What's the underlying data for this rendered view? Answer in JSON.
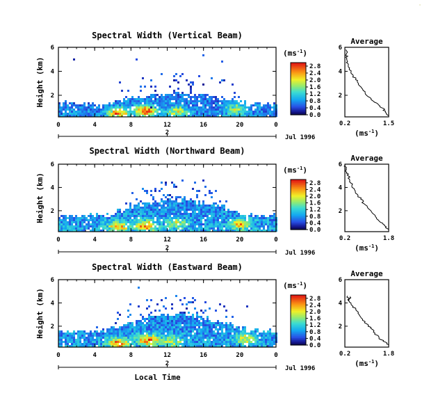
{
  "figure": {
    "x_label": "Local Time",
    "date_label": "Jul 1996",
    "day_label": "2",
    "colorbar_unit_base": "(ms",
    "colorbar_unit_sup": "-1",
    "colorbar_unit_close": ")"
  },
  "chart_data": [
    {
      "type": "heatmap",
      "title": "Spectral Width (Vertical Beam)",
      "xlabel": "",
      "ylabel": "Height (km)",
      "x_ticks": [
        "0",
        "4",
        "8",
        "12",
        "16",
        "20",
        "0"
      ],
      "xlim": [
        0,
        24
      ],
      "y_ticks": [
        "6",
        "4",
        "2"
      ],
      "ylim": [
        0.2,
        6
      ],
      "colorbar": {
        "ticks": [
          "2.8",
          "2.4",
          "2.0",
          "1.6",
          "1.2",
          "0.8",
          "0.4",
          "0.0"
        ],
        "range": [
          0,
          3.0
        ]
      },
      "top_height": 2.2,
      "mean_width": 0.7,
      "hot_spots": [
        {
          "x": 6.5,
          "y": 0.6,
          "v": 2.6
        },
        {
          "x": 9.5,
          "y": 0.8,
          "v": 2.8
        },
        {
          "x": 13,
          "y": 0.7,
          "v": 1.9
        },
        {
          "x": 19.5,
          "y": 0.9,
          "v": 1.8
        }
      ],
      "average_profile": {
        "title": "Average",
        "xlabel_base": "(ms",
        "xlabel_sup": "-1",
        "xlabel_close": ")",
        "x_ticks": [
          "0.2",
          "1.5"
        ],
        "xlim": [
          0.2,
          1.5
        ],
        "y_ticks": [
          "6",
          "4",
          "2"
        ],
        "ylim": [
          0.2,
          6
        ],
        "width": [
          1.5,
          1.4,
          1.35,
          1.2,
          1.05,
          0.95,
          0.8,
          0.7,
          0.6,
          0.52,
          0.45,
          0.38,
          0.33,
          0.3,
          0.28,
          0.26,
          0.24,
          0.23
        ],
        "height": [
          0.3,
          0.6,
          0.9,
          1.2,
          1.5,
          1.8,
          2.2,
          2.6,
          3.0,
          3.3,
          3.6,
          3.9,
          4.2,
          4.5,
          4.8,
          5.1,
          5.4,
          5.8
        ]
      }
    },
    {
      "type": "heatmap",
      "title": "Spectral Width (Northward Beam)",
      "xlabel": "",
      "ylabel": "Height (km)",
      "x_ticks": [
        "0",
        "4",
        "8",
        "12",
        "16",
        "20",
        "0"
      ],
      "xlim": [
        0,
        24
      ],
      "y_ticks": [
        "6",
        "4",
        "2"
      ],
      "ylim": [
        0.2,
        6
      ],
      "colorbar": {
        "ticks": [
          "2.8",
          "2.4",
          "2.0",
          "1.6",
          "1.2",
          "0.8",
          "0.4",
          "0.0"
        ],
        "range": [
          0,
          3.0
        ]
      },
      "top_height": 3.0,
      "mean_width": 0.8,
      "hot_spots": [
        {
          "x": 6.5,
          "y": 0.7,
          "v": 2.4
        },
        {
          "x": 9.5,
          "y": 0.8,
          "v": 2.6
        },
        {
          "x": 13,
          "y": 1.0,
          "v": 1.8
        },
        {
          "x": 20,
          "y": 0.9,
          "v": 2.2
        }
      ],
      "average_profile": {
        "title": "Average",
        "xlabel_base": "(ms",
        "xlabel_sup": "-1",
        "xlabel_close": ")",
        "x_ticks": [
          "0.2",
          "1.8"
        ],
        "xlim": [
          0.2,
          1.8
        ],
        "y_ticks": [
          "6",
          "4",
          "2"
        ],
        "ylim": [
          0.2,
          6
        ],
        "width": [
          1.8,
          1.65,
          1.5,
          1.35,
          1.2,
          1.05,
          0.9,
          0.78,
          0.66,
          0.55,
          0.46,
          0.38,
          0.32,
          0.27,
          0.24,
          0.22
        ],
        "height": [
          0.4,
          0.7,
          1.0,
          1.4,
          1.8,
          2.2,
          2.6,
          3.0,
          3.4,
          3.8,
          4.2,
          4.6,
          5.0,
          5.3,
          5.6,
          5.9
        ]
      }
    },
    {
      "type": "heatmap",
      "title": "Spectral Width (Eastward Beam)",
      "xlabel": "Local Time",
      "ylabel": "Height (km)",
      "x_ticks": [
        "0",
        "4",
        "8",
        "12",
        "16",
        "20",
        "0"
      ],
      "xlim": [
        0,
        24
      ],
      "y_ticks": [
        "6",
        "4",
        "2"
      ],
      "ylim": [
        0.2,
        6
      ],
      "colorbar": {
        "ticks": [
          "2.8",
          "2.4",
          "2.0",
          "1.6",
          "1.2",
          "0.8",
          "0.4",
          "0.0"
        ],
        "range": [
          0,
          3.0
        ]
      },
      "top_height": 3.1,
      "mean_width": 0.8,
      "hot_spots": [
        {
          "x": 6.5,
          "y": 0.6,
          "v": 2.6
        },
        {
          "x": 9.8,
          "y": 0.9,
          "v": 2.8
        },
        {
          "x": 12.5,
          "y": 0.8,
          "v": 1.9
        },
        {
          "x": 20.5,
          "y": 1.0,
          "v": 2.0
        }
      ],
      "average_profile": {
        "title": "Average",
        "xlabel_base": "(ms",
        "xlabel_sup": "-1",
        "xlabel_close": ")",
        "x_ticks": [
          "0.2",
          "1.8"
        ],
        "xlim": [
          0.2,
          1.8
        ],
        "y_ticks": [
          "6",
          "4",
          "2"
        ],
        "ylim": [
          0.2,
          6
        ],
        "width": [
          1.8,
          1.6,
          1.45,
          1.3,
          1.15,
          1.0,
          0.85,
          0.72,
          0.6,
          0.5,
          0.42,
          0.36,
          0.4,
          0.33,
          0.3
        ],
        "height": [
          0.4,
          0.7,
          1.0,
          1.4,
          1.8,
          2.2,
          2.6,
          3.0,
          3.4,
          3.7,
          4.0,
          4.3,
          4.5,
          4.2,
          4.6
        ]
      }
    }
  ]
}
